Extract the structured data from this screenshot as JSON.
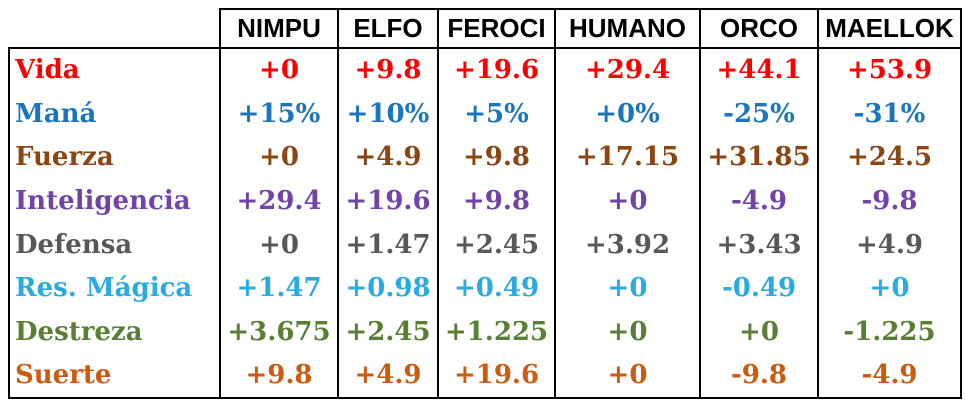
{
  "chart_data": {
    "type": "table",
    "title": "",
    "columns": [
      "NIMPU",
      "ELFO",
      "FEROCI",
      "HUMANO",
      "ORCO",
      "MAELLOK"
    ],
    "rows": [
      {
        "label": "Vida",
        "color": "#FF0000",
        "values": [
          "+0",
          "+9.8",
          "+19.6",
          "+29.4",
          "+44.1",
          "+53.9"
        ]
      },
      {
        "label": "Maná",
        "color": "#1B75BC",
        "values": [
          "+15%",
          "+10%",
          "+5%",
          "+0%",
          "-25%",
          "-31%"
        ]
      },
      {
        "label": "Fuerza",
        "color": "#8B4513",
        "values": [
          "+0",
          "+4.9",
          "+9.8",
          "+17.15",
          "+31.85",
          "+24.5"
        ]
      },
      {
        "label": "Inteligencia",
        "color": "#7143A8",
        "values": [
          "+29.4",
          "+19.6",
          "+9.8",
          "+0",
          "-4.9",
          "-9.8"
        ]
      },
      {
        "label": "Defensa",
        "color": "#57585B",
        "values": [
          "+0",
          "+1.47",
          "+2.45",
          "+3.92",
          "+3.43",
          "+4.9"
        ]
      },
      {
        "label": "Res. Mágica",
        "color": "#29ABE2",
        "values": [
          "+1.47",
          "+0.98",
          "+0.49",
          "+0",
          "-0.49",
          "+0"
        ]
      },
      {
        "label": "Destreza",
        "color": "#587F35",
        "values": [
          "+3.675",
          "+2.45",
          "+1.225",
          "+0",
          "+0",
          "-1.225"
        ]
      },
      {
        "label": "Suerte",
        "color": "#CC5B12",
        "values": [
          "+9.8",
          "+4.9",
          "+19.6",
          "+0",
          "-9.8",
          "-4.9"
        ]
      }
    ],
    "border_color": "#000000",
    "background": "#FFFFFF",
    "grid": "vertical-lines-only-in-body"
  }
}
